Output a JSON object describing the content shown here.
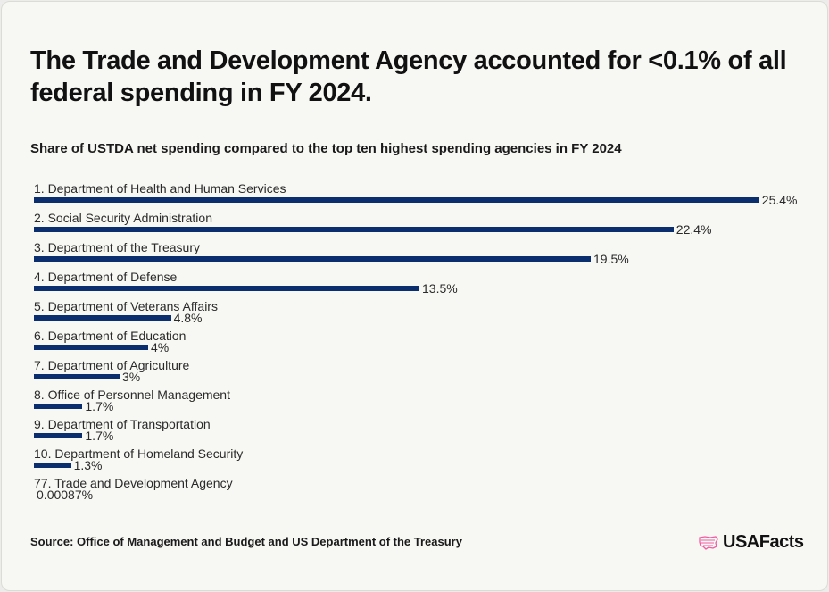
{
  "title": "The Trade and Development Agency accounted for <0.1% of all federal spending in FY 2024.",
  "subtitle": "Share of USTDA net spending compared to the top ten highest spending agencies in FY 2024",
  "source": "Source: Office of Management and Budget and US Department of the Treasury",
  "logo": {
    "text": "USAFacts",
    "icon": "us-map-flag-icon",
    "icon_color": "#f25ca2"
  },
  "colors": {
    "bar": "#0b2f6e",
    "background": "#f7f7f3"
  },
  "chart_data": {
    "type": "bar",
    "orientation": "horizontal",
    "title": "Share of USTDA net spending compared to the top ten highest spending agencies in FY 2024",
    "categories": [
      "1. Department of Health and Human Services",
      "2. Social Security Administration",
      "3. Department of the Treasury",
      "4. Department of Defense",
      "5. Department of Veterans Affairs",
      "6. Department of Education",
      "7. Department of Agriculture",
      "8. Office of Personnel Management",
      "9. Department of Transportation",
      "10. Department of Homeland Security",
      "77. Trade and Development Agency"
    ],
    "values": [
      25.4,
      22.4,
      19.5,
      13.5,
      4.8,
      4,
      3,
      1.7,
      1.7,
      1.3,
      0.00087
    ],
    "labels": [
      "25.4%",
      "22.4%",
      "19.5%",
      "13.5%",
      "4.8%",
      "4%",
      "3%",
      "1.7%",
      "1.7%",
      "1.3%",
      "0.00087%"
    ],
    "unit": "%",
    "grid": false,
    "legend": "none"
  }
}
